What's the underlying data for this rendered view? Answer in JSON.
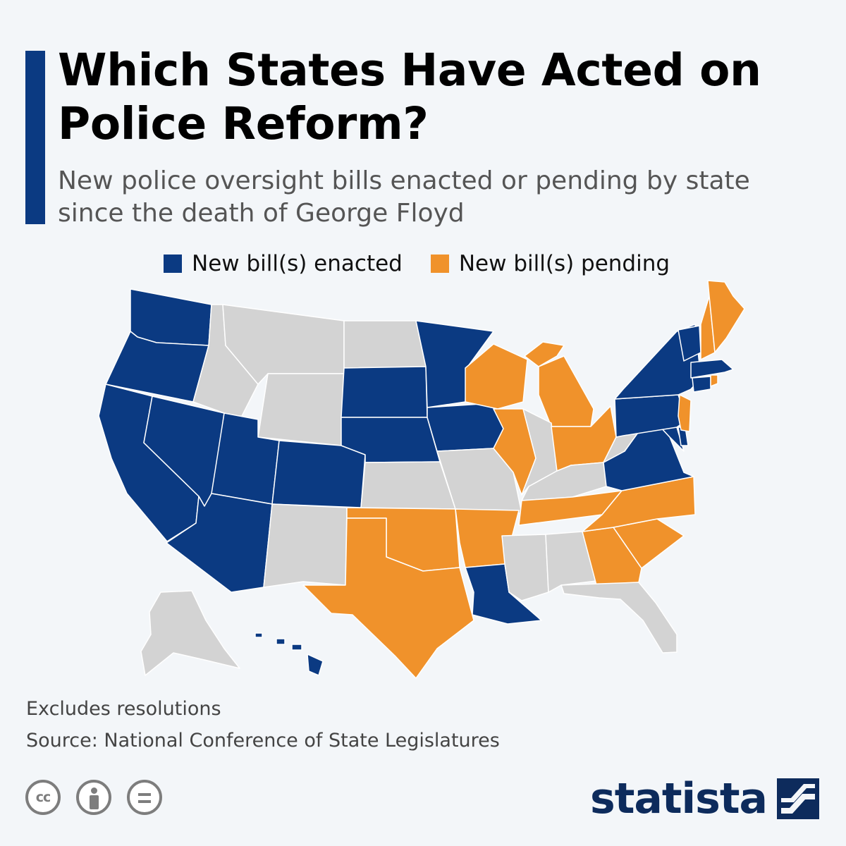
{
  "header": {
    "title": "Which States Have Acted on Police Reform?",
    "subtitle": "New police oversight bills enacted or pending by state since the death of George Floyd"
  },
  "legend": {
    "enacted": "New bill(s) enacted",
    "pending": "New bill(s) pending"
  },
  "colors": {
    "accent": "#0b3a82",
    "enacted": "#0b3a82",
    "pending": "#f0922b",
    "none": "#d3d3d3",
    "border": "#ffffff",
    "brand": "#0d2b5c",
    "background": "#f3f6f9"
  },
  "map": {
    "region": "United States",
    "states": [
      {
        "state": "WA",
        "status": "enacted"
      },
      {
        "state": "OR",
        "status": "enacted"
      },
      {
        "state": "CA",
        "status": "enacted"
      },
      {
        "state": "NV",
        "status": "enacted"
      },
      {
        "state": "ID",
        "status": "none"
      },
      {
        "state": "MT",
        "status": "none"
      },
      {
        "state": "WY",
        "status": "none"
      },
      {
        "state": "UT",
        "status": "enacted"
      },
      {
        "state": "AZ",
        "status": "enacted"
      },
      {
        "state": "CO",
        "status": "enacted"
      },
      {
        "state": "NM",
        "status": "none"
      },
      {
        "state": "ND",
        "status": "none"
      },
      {
        "state": "SD",
        "status": "enacted"
      },
      {
        "state": "NE",
        "status": "enacted"
      },
      {
        "state": "KS",
        "status": "none"
      },
      {
        "state": "OK",
        "status": "pending"
      },
      {
        "state": "TX",
        "status": "pending"
      },
      {
        "state": "MN",
        "status": "enacted"
      },
      {
        "state": "IA",
        "status": "enacted"
      },
      {
        "state": "MO",
        "status": "none"
      },
      {
        "state": "AR",
        "status": "pending"
      },
      {
        "state": "LA",
        "status": "enacted"
      },
      {
        "state": "WI",
        "status": "pending"
      },
      {
        "state": "IL",
        "status": "pending"
      },
      {
        "state": "MI",
        "status": "pending"
      },
      {
        "state": "IN",
        "status": "none"
      },
      {
        "state": "OH",
        "status": "pending"
      },
      {
        "state": "KY",
        "status": "none"
      },
      {
        "state": "TN",
        "status": "pending"
      },
      {
        "state": "MS",
        "status": "none"
      },
      {
        "state": "AL",
        "status": "none"
      },
      {
        "state": "GA",
        "status": "pending"
      },
      {
        "state": "FL",
        "status": "none"
      },
      {
        "state": "SC",
        "status": "pending"
      },
      {
        "state": "NC",
        "status": "pending"
      },
      {
        "state": "VA",
        "status": "enacted"
      },
      {
        "state": "WV",
        "status": "none"
      },
      {
        "state": "MD",
        "status": "enacted"
      },
      {
        "state": "DE",
        "status": "enacted"
      },
      {
        "state": "PA",
        "status": "enacted"
      },
      {
        "state": "NJ",
        "status": "pending"
      },
      {
        "state": "NY",
        "status": "enacted"
      },
      {
        "state": "CT",
        "status": "enacted"
      },
      {
        "state": "RI",
        "status": "pending"
      },
      {
        "state": "MA",
        "status": "enacted"
      },
      {
        "state": "VT",
        "status": "enacted"
      },
      {
        "state": "NH",
        "status": "pending"
      },
      {
        "state": "ME",
        "status": "pending"
      },
      {
        "state": "AK",
        "status": "none"
      },
      {
        "state": "HI",
        "status": "enacted"
      }
    ]
  },
  "footer": {
    "note": "Excludes resolutions",
    "source": "Source: National Conference of State Legislatures",
    "license_icons": [
      "cc-icon",
      "attribution-icon",
      "no-derivatives-icon"
    ],
    "license_cc_text": "cc",
    "brand": "statista"
  }
}
